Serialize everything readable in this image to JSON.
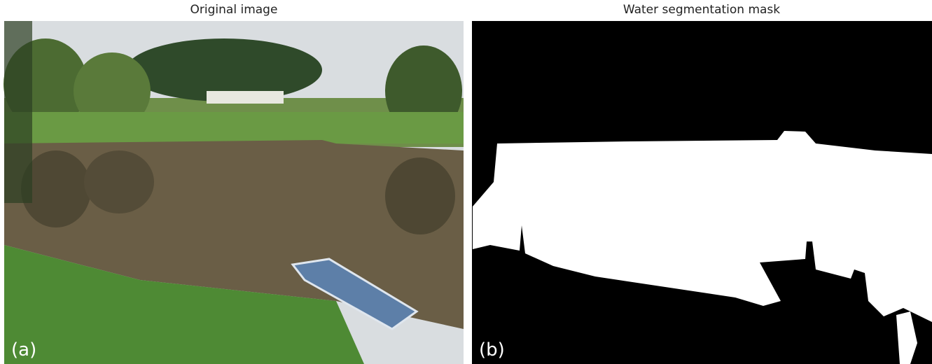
{
  "panels": [
    {
      "title": "Original image",
      "label": "(a)"
    },
    {
      "title": "Water segmentation mask",
      "label": "(b)"
    }
  ]
}
